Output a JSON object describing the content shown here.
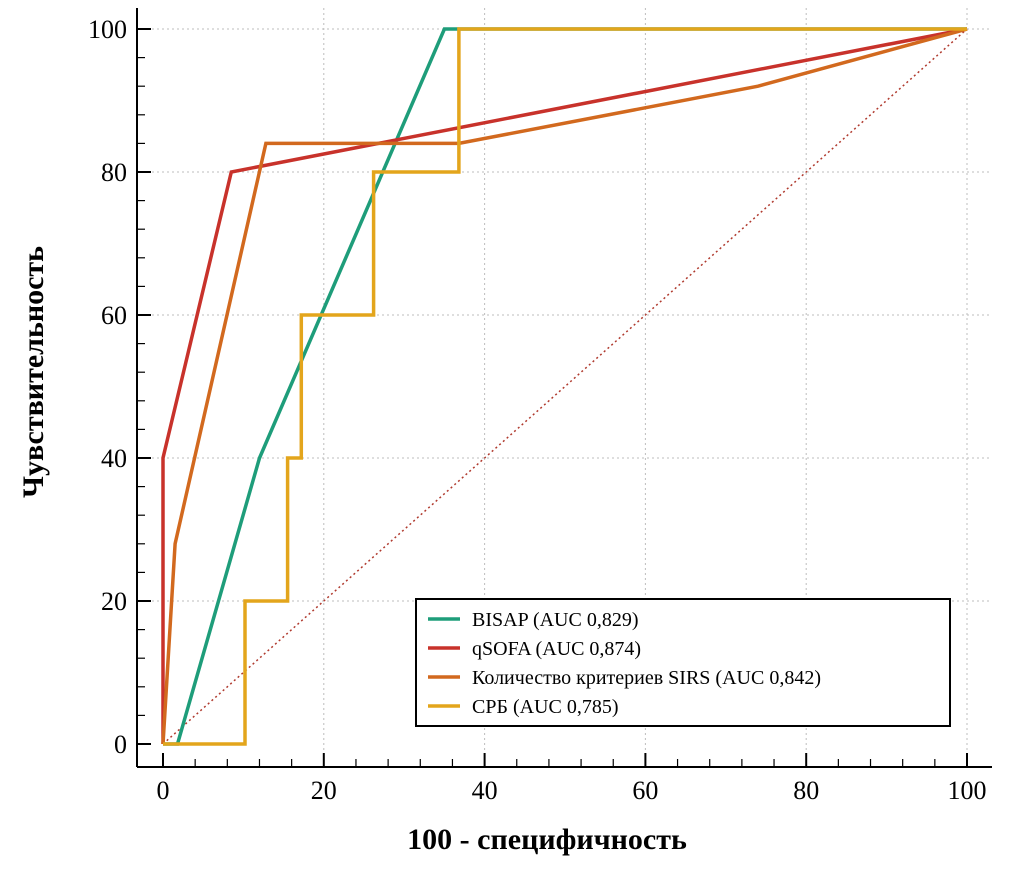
{
  "chart_data": {
    "type": "line",
    "xlabel": "100 - специфичность",
    "ylabel": "Чувствительность",
    "xlim": [
      0,
      100
    ],
    "ylim": [
      0,
      100
    ],
    "xticks": [
      0,
      20,
      40,
      60,
      80,
      100
    ],
    "yticks": [
      0,
      20,
      40,
      60,
      80,
      100
    ],
    "grid": true,
    "legend_position": "bottom-right",
    "reference_line": {
      "x": [
        0,
        100
      ],
      "y": [
        0,
        100
      ],
      "style": "dotted",
      "color": "#b03a2e"
    },
    "series": [
      {
        "name": "BISAP (AUC 0,829)",
        "color": "#1e9d7a",
        "x": [
          0,
          1.8,
          12,
          35,
          36.8,
          100
        ],
        "y": [
          0,
          0,
          40,
          100,
          100,
          100
        ]
      },
      {
        "name": "qSOFA (AUC 0,874)",
        "color": "#c8322b",
        "x": [
          0,
          0,
          8.5,
          100
        ],
        "y": [
          0,
          40,
          80,
          100
        ]
      },
      {
        "name": "Количество критериев SIRS (AUC 0,842)",
        "color": "#d2691e",
        "x": [
          0,
          1.5,
          12.8,
          36.8,
          74,
          100
        ],
        "y": [
          0,
          28,
          84,
          84,
          92,
          100
        ]
      },
      {
        "name": "СРБ (AUC 0,785)",
        "color": "#e3a51c",
        "x": [
          0,
          10.2,
          10.2,
          15.5,
          15.5,
          17.2,
          17.2,
          26.2,
          26.2,
          36.8,
          36.8,
          100
        ],
        "y": [
          0,
          0,
          20,
          20,
          40,
          40,
          60,
          60,
          80,
          80,
          100,
          100
        ]
      }
    ]
  }
}
